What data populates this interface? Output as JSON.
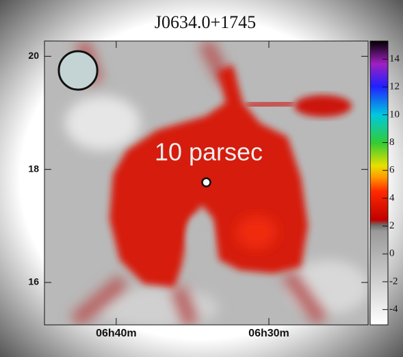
{
  "chart_data": {
    "type": "heatmap",
    "title": "J0634.0+1745",
    "xlim": [
      404.7,
      383.5
    ],
    "xticks": [
      {
        "value": 400,
        "label": "06h40m"
      },
      {
        "value": 390,
        "label": "06h30m"
      }
    ],
    "ylim": [
      15.25,
      20.27
    ],
    "yticks": [
      16,
      18,
      20
    ],
    "colorbar": {
      "lim": [
        -5.1,
        15.3
      ],
      "ticks": [
        -4,
        -2,
        0,
        2,
        4,
        6,
        8,
        10,
        12,
        14
      ]
    },
    "annotation": "10 parsec",
    "source": {
      "x": 394.1,
      "y": 17.77
    },
    "beam": {
      "x": 402.5,
      "y": 19.75,
      "radius": 0.34
    }
  }
}
